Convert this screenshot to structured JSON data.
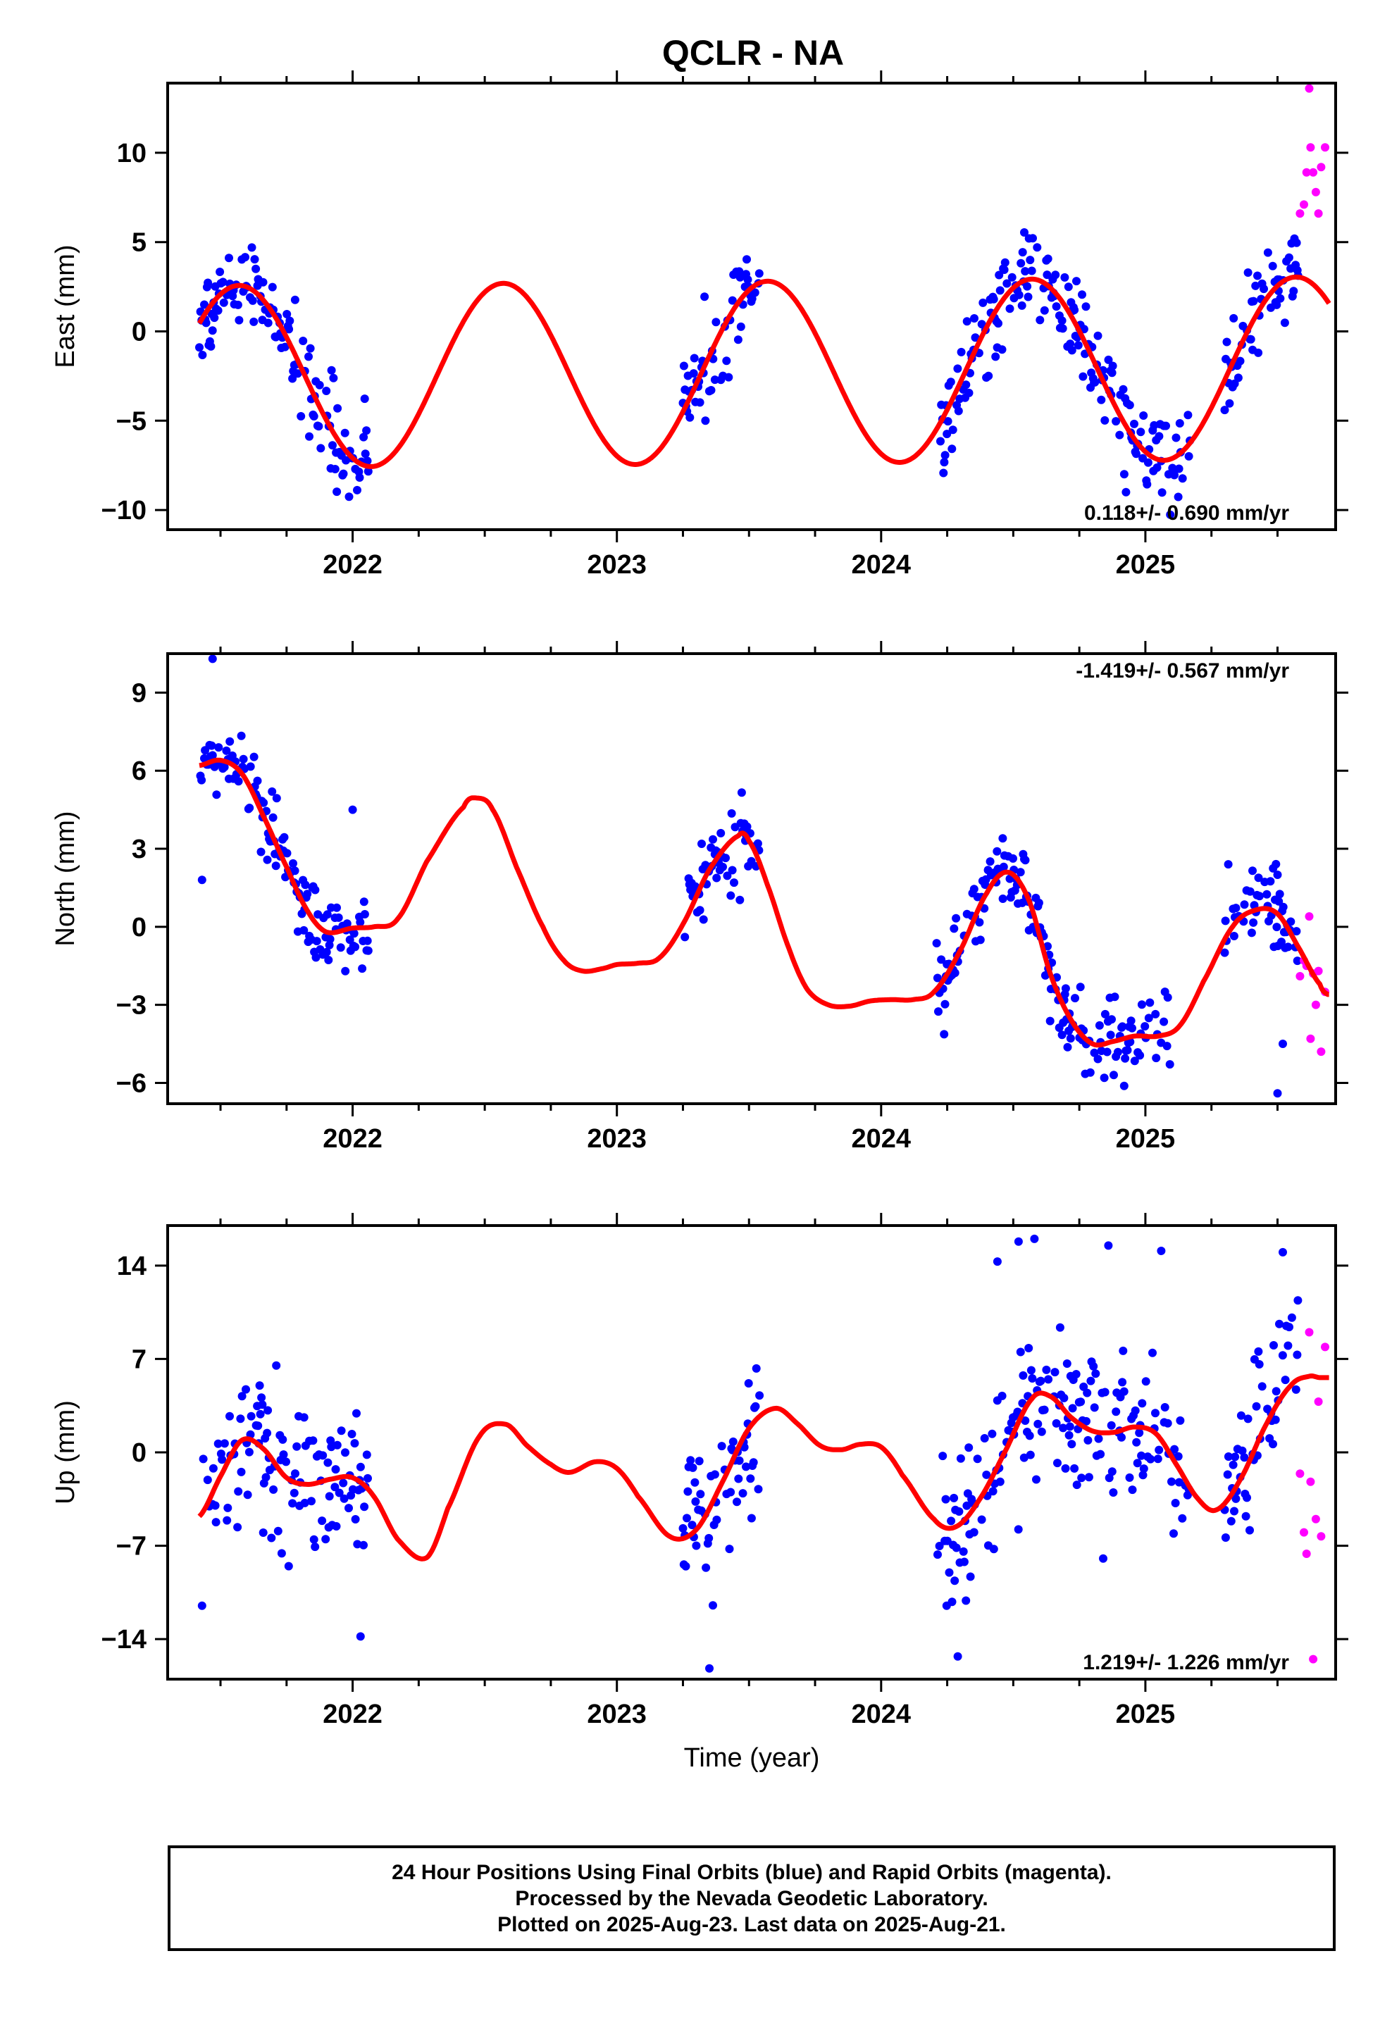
{
  "title": "QCLR - NA",
  "colors": {
    "final": "#0000ff",
    "rapid": "#ff00ff",
    "model": "#ff0000",
    "axis": "#000000"
  },
  "footer": {
    "line1": "24 Hour Positions Using Final Orbits (blue) and Rapid Orbits (magenta).",
    "line2": "Processed by the Nevada Geodetic Laboratory.",
    "line3": "Plotted on 2025-Aug-23. Last data on 2025-Aug-21."
  },
  "chart_data": [
    {
      "type": "scatter",
      "component": "east",
      "ylabel": "East (mm)",
      "xlabel": "",
      "xlim": [
        2021.3,
        2025.72
      ],
      "ylim": [
        -11.1,
        13.9
      ],
      "xticks": [
        2022,
        2023,
        2024,
        2025
      ],
      "yticks": [
        10,
        5,
        0,
        -5,
        -10
      ],
      "rate_label": "0.118+/- 0.690 mm/yr",
      "rate_position": "bottom-right",
      "data_segments": [
        [
          2021.42,
          2022.06
        ],
        [
          2023.25,
          2023.54
        ],
        [
          2024.21,
          2025.17
        ],
        [
          2025.3,
          2025.58
        ]
      ],
      "rapid_x": [
        2025.58,
        2025.72
      ],
      "model": {
        "amplitude": 5.1,
        "phase": 2023.57,
        "offset": -2.3,
        "rate": 0.118,
        "ref_year": 2023.5
      },
      "noise_sd": 1.3,
      "rapid_points": [
        [
          2025.585,
          6.6
        ],
        [
          2025.6,
          7.1
        ],
        [
          2025.61,
          8.9
        ],
        [
          2025.62,
          13.6
        ],
        [
          2025.625,
          10.3
        ],
        [
          2025.635,
          8.9
        ],
        [
          2025.645,
          7.8
        ],
        [
          2025.655,
          6.6
        ],
        [
          2025.665,
          9.2
        ],
        [
          2025.68,
          10.3
        ]
      ]
    },
    {
      "type": "scatter",
      "component": "north",
      "ylabel": "North (mm)",
      "xlabel": "",
      "xlim": [
        2021.3,
        2025.72
      ],
      "ylim": [
        -6.8,
        10.5
      ],
      "xticks": [
        2022,
        2023,
        2024,
        2025
      ],
      "yticks": [
        9,
        6,
        3,
        0,
        -3,
        -6
      ],
      "rate_label": "-1.419+/- 0.567 mm/yr",
      "rate_position": "top-right",
      "data_segments": [
        [
          2021.42,
          2022.06
        ],
        [
          2023.25,
          2023.54
        ],
        [
          2024.21,
          2025.1
        ],
        [
          2025.3,
          2025.58
        ]
      ],
      "rapid_x": [
        2025.58,
        2025.72
      ],
      "model_points": [
        [
          2021.42,
          6.2
        ],
        [
          2021.5,
          6.4
        ],
        [
          2021.58,
          5.9
        ],
        [
          2021.66,
          4.3
        ],
        [
          2021.75,
          2.3
        ],
        [
          2021.83,
          0.6
        ],
        [
          2021.9,
          -0.2
        ],
        [
          2022.0,
          -0.05
        ],
        [
          2022.08,
          0.0
        ],
        [
          2022.17,
          0.3
        ],
        [
          2022.28,
          2.5
        ],
        [
          2022.42,
          4.6
        ],
        [
          2022.47,
          4.95
        ],
        [
          2022.53,
          4.5
        ],
        [
          2022.62,
          2.3
        ],
        [
          2022.72,
          0.0
        ],
        [
          2022.8,
          -1.3
        ],
        [
          2022.87,
          -1.7
        ],
        [
          2022.95,
          -1.6
        ],
        [
          2023.0,
          -1.45
        ],
        [
          2023.08,
          -1.4
        ],
        [
          2023.16,
          -1.2
        ],
        [
          2023.25,
          0.1
        ],
        [
          2023.35,
          2.2
        ],
        [
          2023.46,
          3.5
        ],
        [
          2023.5,
          3.3
        ],
        [
          2023.57,
          1.6
        ],
        [
          2023.65,
          -0.8
        ],
        [
          2023.72,
          -2.4
        ],
        [
          2023.8,
          -3.0
        ],
        [
          2023.88,
          -3.05
        ],
        [
          2023.96,
          -2.85
        ],
        [
          2024.04,
          -2.8
        ],
        [
          2024.12,
          -2.8
        ],
        [
          2024.2,
          -2.5
        ],
        [
          2024.3,
          -0.9
        ],
        [
          2024.4,
          1.3
        ],
        [
          2024.48,
          2.1
        ],
        [
          2024.56,
          1.0
        ],
        [
          2024.64,
          -1.8
        ],
        [
          2024.72,
          -3.6
        ],
        [
          2024.8,
          -4.5
        ],
        [
          2024.88,
          -4.4
        ],
        [
          2024.96,
          -4.2
        ],
        [
          2025.05,
          -4.2
        ],
        [
          2025.13,
          -3.8
        ],
        [
          2025.22,
          -2.1
        ],
        [
          2025.33,
          0.0
        ],
        [
          2025.42,
          0.65
        ],
        [
          2025.5,
          0.5
        ],
        [
          2025.58,
          -0.8
        ],
        [
          2025.66,
          -2.2
        ],
        [
          2025.69,
          -2.6
        ]
      ],
      "noise_sd": 0.75,
      "rapid_points": [
        [
          2025.585,
          -1.9
        ],
        [
          2025.6,
          -1.3
        ],
        [
          2025.61,
          -1.5
        ],
        [
          2025.62,
          0.4
        ],
        [
          2025.625,
          -4.3
        ],
        [
          2025.635,
          -1.8
        ],
        [
          2025.645,
          -3.0
        ],
        [
          2025.655,
          -1.7
        ],
        [
          2025.665,
          -4.8
        ],
        [
          2025.68,
          -2.5
        ]
      ],
      "extra_points": [
        [
          2021.43,
          1.8
        ],
        [
          2021.47,
          10.3
        ],
        [
          2022.0,
          4.5
        ],
        [
          2025.5,
          2.0
        ],
        [
          2025.5,
          -6.4
        ],
        [
          2025.52,
          -4.5
        ],
        [
          2024.46,
          3.4
        ]
      ]
    },
    {
      "type": "scatter",
      "component": "up",
      "ylabel": "Up (mm)",
      "xlabel": "Time (year)",
      "xlim": [
        2021.3,
        2025.72
      ],
      "ylim": [
        -17.0,
        17.0
      ],
      "xticks": [
        2022,
        2023,
        2024,
        2025
      ],
      "yticks": [
        14,
        7,
        0,
        -7,
        -14
      ],
      "rate_label": "1.219+/- 1.226 mm/yr",
      "rate_position": "bottom-right",
      "data_segments": [
        [
          2021.42,
          2022.06
        ],
        [
          2023.25,
          2023.54
        ],
        [
          2024.21,
          2025.17
        ],
        [
          2025.3,
          2025.58
        ]
      ],
      "rapid_x": [
        2025.58,
        2025.72
      ],
      "model_points": [
        [
          2021.42,
          -4.8
        ],
        [
          2021.5,
          -1.8
        ],
        [
          2021.58,
          0.9
        ],
        [
          2021.66,
          0.3
        ],
        [
          2021.75,
          -1.9
        ],
        [
          2021.83,
          -2.4
        ],
        [
          2021.92,
          -2.0
        ],
        [
          2022.0,
          -1.9
        ],
        [
          2022.08,
          -3.3
        ],
        [
          2022.17,
          -6.5
        ],
        [
          2022.28,
          -7.9
        ],
        [
          2022.36,
          -4.2
        ],
        [
          2022.48,
          1.2
        ],
        [
          2022.58,
          2.1
        ],
        [
          2022.66,
          0.5
        ],
        [
          2022.75,
          -0.9
        ],
        [
          2022.82,
          -1.5
        ],
        [
          2022.92,
          -0.7
        ],
        [
          2023.0,
          -1.2
        ],
        [
          2023.08,
          -3.3
        ],
        [
          2023.2,
          -6.3
        ],
        [
          2023.3,
          -5.8
        ],
        [
          2023.4,
          -2.2
        ],
        [
          2023.5,
          1.8
        ],
        [
          2023.6,
          3.3
        ],
        [
          2023.68,
          2.2
        ],
        [
          2023.77,
          0.5
        ],
        [
          2023.85,
          0.2
        ],
        [
          2023.92,
          0.6
        ],
        [
          2024.0,
          0.4
        ],
        [
          2024.08,
          -1.7
        ],
        [
          2024.2,
          -5.0
        ],
        [
          2024.28,
          -5.6
        ],
        [
          2024.37,
          -3.6
        ],
        [
          2024.47,
          0.1
        ],
        [
          2024.57,
          4.0
        ],
        [
          2024.64,
          4.2
        ],
        [
          2024.72,
          2.6
        ],
        [
          2024.8,
          1.6
        ],
        [
          2024.88,
          1.5
        ],
        [
          2024.96,
          1.9
        ],
        [
          2025.04,
          1.4
        ],
        [
          2025.12,
          -1.0
        ],
        [
          2025.2,
          -3.5
        ],
        [
          2025.27,
          -4.3
        ],
        [
          2025.36,
          -2.0
        ],
        [
          2025.46,
          2.2
        ],
        [
          2025.55,
          5.0
        ],
        [
          2025.62,
          5.7
        ],
        [
          2025.66,
          5.6
        ]
      ],
      "noise_sd": 3.0,
      "rapid_points": [
        [
          2025.585,
          -1.6
        ],
        [
          2025.6,
          -6.0
        ],
        [
          2025.61,
          -7.6
        ],
        [
          2025.62,
          9.0
        ],
        [
          2025.625,
          -2.2
        ],
        [
          2025.635,
          -15.5
        ],
        [
          2025.645,
          -5.0
        ],
        [
          2025.655,
          3.8
        ],
        [
          2025.665,
          -6.3
        ],
        [
          2025.68,
          7.9
        ]
      ],
      "extra_points": [
        [
          2024.58,
          16.0
        ],
        [
          2024.44,
          14.3
        ],
        [
          2025.52,
          15.0
        ],
        [
          2025.06,
          15.1
        ],
        [
          2023.35,
          -16.2
        ],
        [
          2024.29,
          -15.3
        ],
        [
          2022.03,
          -13.8
        ],
        [
          2021.43,
          -11.5
        ],
        [
          2024.52,
          15.8
        ],
        [
          2024.86,
          15.5
        ]
      ]
    }
  ]
}
